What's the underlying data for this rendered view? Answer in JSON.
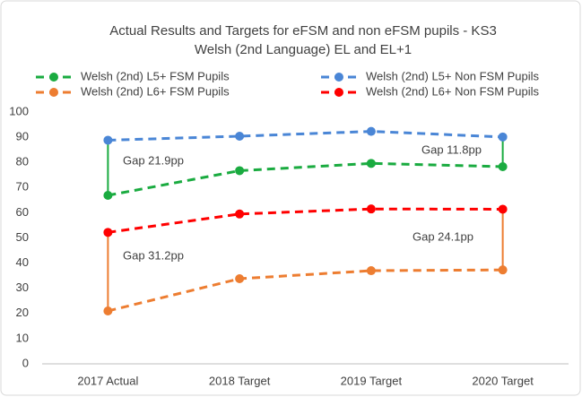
{
  "chart_data": {
    "type": "line",
    "title": [
      "Actual Results and Targets for eFSM and non eFSM pupils - KS3",
      "Welsh (2nd Language) EL and EL+1"
    ],
    "categories": [
      "2017 Actual",
      "2018 Target",
      "2019 Target",
      "2020 Target"
    ],
    "series": [
      {
        "name": "Welsh (2nd) L5+ FSM Pupils",
        "color": "#1aab40",
        "values": [
          66.9,
          76.7,
          79.6,
          78.3
        ]
      },
      {
        "name": "Welsh (2nd) L5+ Non FSM Pupils",
        "color": "#4a86d6",
        "values": [
          88.8,
          90.4,
          92.3,
          90.1
        ]
      },
      {
        "name": "Welsh (2nd) L6+ FSM Pupils",
        "color": "#ed7d31",
        "values": [
          21.0,
          33.8,
          37.0,
          37.3
        ]
      },
      {
        "name": "Welsh (2nd) L6+ Non FSM Pupils",
        "color": "#ff0000",
        "values": [
          52.2,
          59.5,
          61.5,
          61.4
        ]
      }
    ],
    "annotations": [
      "Gap 21.9pp",
      "Gap 31.2pp",
      "Gap 11.8pp",
      "Gap 24.1pp"
    ],
    "ylim": [
      0,
      100
    ],
    "yticks": [
      0,
      10,
      20,
      30,
      40,
      50,
      60,
      70,
      80,
      90,
      100
    ],
    "grid": false,
    "legend": "top"
  }
}
